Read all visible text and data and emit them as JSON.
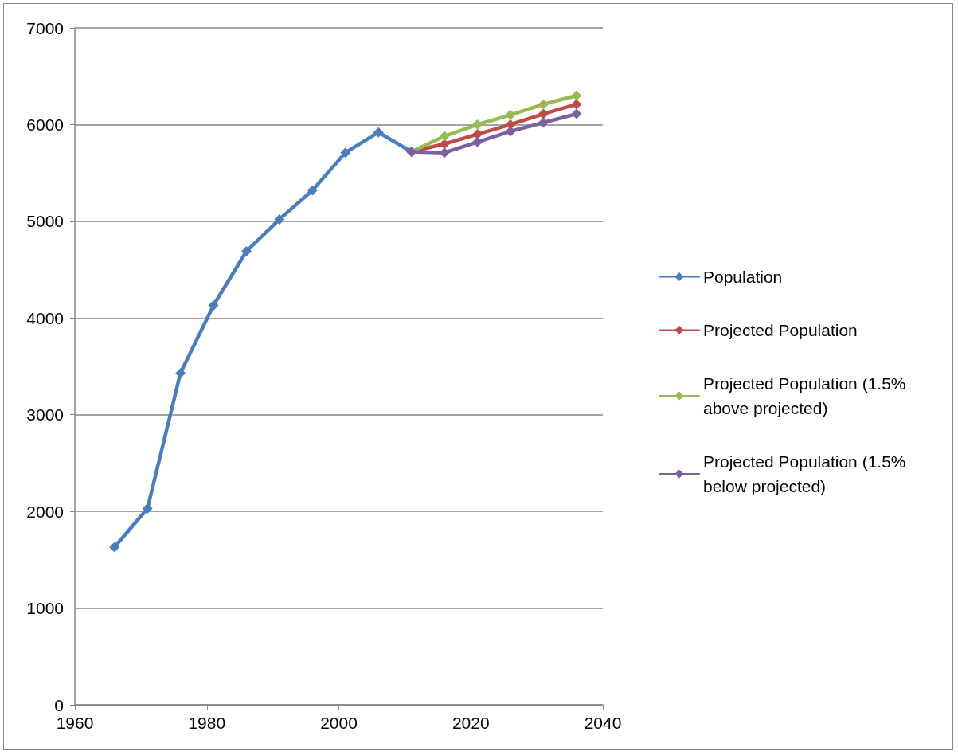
{
  "chart_data": {
    "type": "line",
    "marker": "diamond",
    "grid": "y",
    "legend": "right",
    "xlim": [
      1960,
      2040
    ],
    "xticks": [
      1960,
      1980,
      2000,
      2020,
      2040
    ],
    "ylim": [
      0,
      7000
    ],
    "yticks": [
      0,
      1000,
      2000,
      3000,
      4000,
      5000,
      6000,
      7000
    ],
    "series": [
      {
        "name": "Population",
        "color": "#4a7ebb",
        "x": [
          1966,
          1971,
          1976,
          1981,
          1986,
          1991,
          1996,
          2001,
          2006,
          2011
        ],
        "values": [
          1630,
          2030,
          3430,
          4130,
          4690,
          5020,
          5320,
          5710,
          5920,
          5720
        ]
      },
      {
        "name": "Projected Population",
        "color": "#be4b48",
        "x": [
          2011,
          2016,
          2021,
          2026,
          2031,
          2036
        ],
        "values": [
          5720,
          5800,
          5900,
          6000,
          6110,
          6210
        ]
      },
      {
        "name": "Projected Population (1.5% above projected)",
        "color": "#98b954",
        "x": [
          2011,
          2016,
          2021,
          2026,
          2031,
          2036
        ],
        "values": [
          5720,
          5880,
          6000,
          6100,
          6210,
          6300
        ]
      },
      {
        "name": "Projected Population (1.5% below projected)",
        "color": "#7d60a0",
        "x": [
          2011,
          2016,
          2021,
          2026,
          2031,
          2036
        ],
        "values": [
          5720,
          5710,
          5820,
          5930,
          6020,
          6110
        ]
      }
    ]
  }
}
